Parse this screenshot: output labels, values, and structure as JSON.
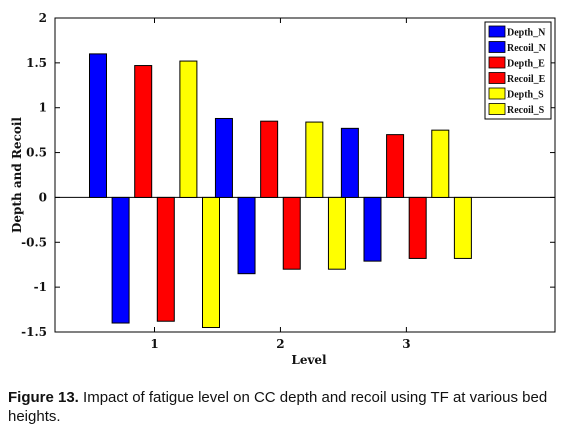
{
  "chart_data": {
    "type": "bar",
    "xlabel": "Level",
    "ylabel": "Depth and Recoil",
    "categories": [
      "1",
      "2",
      "3"
    ],
    "ylim": [
      -1.5,
      2
    ],
    "yticks": [
      "2",
      "1.5",
      "1",
      "0.5",
      "0",
      "-0.5",
      "-1",
      "-1.5"
    ],
    "grid": false,
    "legend_position": "top-right",
    "series": [
      {
        "name": "Depth_N",
        "color": "#0000ff",
        "values": [
          1.6,
          0.88,
          0.77
        ]
      },
      {
        "name": "Recoil_N",
        "color": "#0000ff",
        "values": [
          -1.4,
          -0.85,
          -0.71
        ]
      },
      {
        "name": "Depth_E",
        "color": "#ff0000",
        "values": [
          1.47,
          0.85,
          0.7
        ]
      },
      {
        "name": "Recoil_E",
        "color": "#ff0000",
        "values": [
          -1.38,
          -0.8,
          -0.68
        ]
      },
      {
        "name": "Depth_S",
        "color": "#ffff00",
        "values": [
          1.52,
          0.84,
          0.75
        ]
      },
      {
        "name": "Recoil_S",
        "color": "#ffff00",
        "values": [
          -1.45,
          -0.8,
          -0.68
        ]
      }
    ]
  },
  "caption": {
    "label": "Figure 13.",
    "text": " Impact of fatigue level on CC depth and recoil using TF at various bed heights."
  }
}
